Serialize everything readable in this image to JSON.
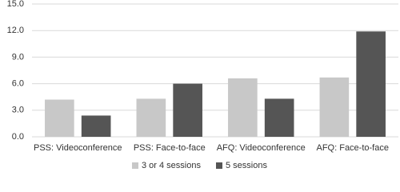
{
  "chart_data": {
    "type": "bar",
    "categories": [
      "PSS: Videoconference",
      "PSS: Face-to-face",
      "AFQ: Videoconference",
      "AFQ: Face-to-face"
    ],
    "series": [
      {
        "name": "3 or 4 sessions",
        "color": "#c8c8c8",
        "values": [
          4.2,
          4.3,
          6.6,
          6.7
        ]
      },
      {
        "name": "5 sessions",
        "color": "#555555",
        "values": [
          2.4,
          6.0,
          4.3,
          11.9
        ]
      }
    ],
    "ylim": [
      0,
      15
    ],
    "yticks": [
      {
        "value": 0,
        "label": "0.0"
      },
      {
        "value": 3,
        "label": "3.0"
      },
      {
        "value": 6,
        "label": "6.0"
      },
      {
        "value": 9,
        "label": "9.0"
      },
      {
        "value": 12,
        "label": "12.0"
      },
      {
        "value": 15,
        "label": "15.0"
      }
    ],
    "grid": true,
    "legend": "bottom"
  }
}
